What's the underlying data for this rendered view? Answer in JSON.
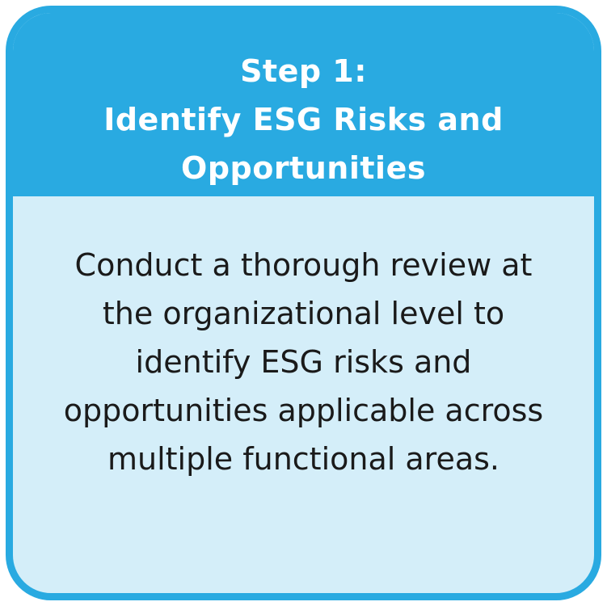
{
  "card": {
    "header": {
      "line1": "Step 1:",
      "line2": "Identify ESG Risks and",
      "line3": "Opportunities"
    },
    "body": {
      "text": "Conduct a thorough review at the organizational level to identify ESG risks and opportunities applicable across multiple functional areas."
    }
  },
  "colors": {
    "header_bg": "#29aae1",
    "body_bg": "#d4eef9",
    "border": "#29aae1",
    "header_text": "#ffffff",
    "body_text": "#1a1a1a"
  }
}
